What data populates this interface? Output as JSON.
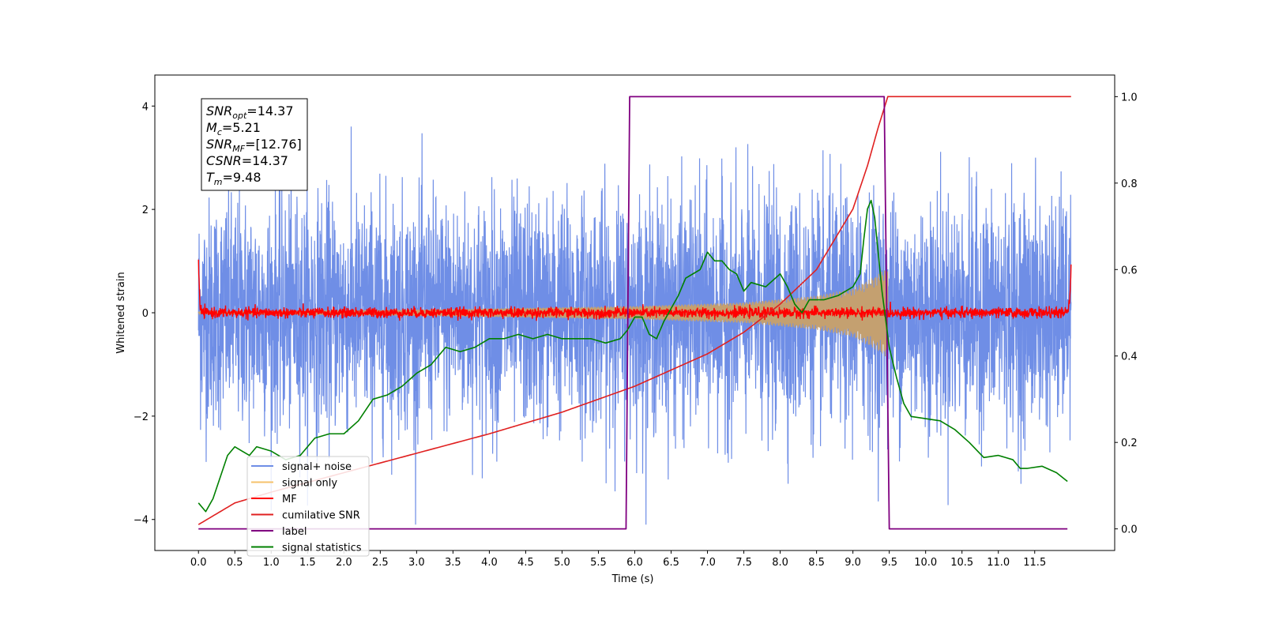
{
  "chart_data": {
    "type": "line",
    "xlabel": "Time (s)",
    "ylabel": "Whitened strain",
    "xlim": [
      -0.6,
      12.6
    ],
    "ylim": [
      -4.6,
      4.6
    ],
    "ylim_right": [
      -0.05,
      1.05
    ],
    "x_ticks": [
      0.0,
      0.5,
      1.0,
      1.5,
      2.0,
      2.5,
      3.0,
      3.5,
      4.0,
      4.5,
      5.0,
      5.5,
      6.0,
      6.5,
      7.0,
      7.5,
      8.0,
      8.5,
      9.0,
      9.5,
      10.0,
      10.5,
      11.0,
      11.5
    ],
    "x_tick_labels": [
      "0.0",
      "0.5",
      "1.0",
      "1.5",
      "2.0",
      "2.5",
      "3.0",
      "3.5",
      "4.0",
      "4.5",
      "5.0",
      "5.5",
      "6.0",
      "6.5",
      "7.0",
      "7.5",
      "8.0",
      "8.5",
      "9.0",
      "9.5",
      "10.0",
      "10.5",
      "11.0",
      "11.5"
    ],
    "y_ticks": [
      -4,
      -2,
      0,
      2,
      4
    ],
    "y_tick_labels": [
      "−4",
      "−2",
      "0",
      "2",
      "4"
    ],
    "y_ticks_right": [
      0.0,
      0.2,
      0.4,
      0.6,
      0.8,
      1.0
    ],
    "y_tick_labels_right": [
      "0.0",
      "0.2",
      "0.4",
      "0.6",
      "0.8",
      "1.0"
    ],
    "grid": false,
    "legend_position": "lower-left",
    "colors": {
      "signal_noise": "#6f8ee6",
      "signal_only": "#f5c26b",
      "mf": "#ff0000",
      "cumulative_snr": "#e02020",
      "label": "#800080",
      "signal_statistics": "#008000",
      "chirp_fill": "#c4a070"
    },
    "series": [
      {
        "name": "signal+ noise",
        "axis": "left",
        "style": "noise",
        "x_range": [
          0.0,
          12.0
        ],
        "amplitude_typical": 1.1,
        "amplitude_peak": 4.1
      },
      {
        "name": "signal only",
        "axis": "left",
        "style": "chirp",
        "x_range": [
          0.0,
          9.48
        ],
        "envelope": [
          [
            0.0,
            0.02
          ],
          [
            3.0,
            0.06
          ],
          [
            6.0,
            0.13
          ],
          [
            7.5,
            0.2
          ],
          [
            8.5,
            0.33
          ],
          [
            9.0,
            0.47
          ],
          [
            9.3,
            0.7
          ],
          [
            9.45,
            0.85
          ]
        ]
      },
      {
        "name": "MF",
        "axis": "left",
        "style": "mf",
        "x_range": [
          0.0,
          12.0
        ],
        "points": [
          [
            0.0,
            1.0
          ],
          [
            0.02,
            0.1
          ],
          [
            0.05,
            0.0
          ],
          [
            11.95,
            0.0
          ],
          [
            11.98,
            0.2
          ],
          [
            12.0,
            0.9
          ]
        ],
        "noise_amplitude": 0.1
      },
      {
        "name": "cumilative SNR",
        "axis": "right",
        "points": [
          [
            0.0,
            0.01
          ],
          [
            0.5,
            0.06
          ],
          [
            1.0,
            0.085
          ],
          [
            2.0,
            0.13
          ],
          [
            3.0,
            0.175
          ],
          [
            4.0,
            0.22
          ],
          [
            5.0,
            0.27
          ],
          [
            6.0,
            0.33
          ],
          [
            7.0,
            0.405
          ],
          [
            7.5,
            0.455
          ],
          [
            8.0,
            0.52
          ],
          [
            8.5,
            0.6
          ],
          [
            9.0,
            0.74
          ],
          [
            9.2,
            0.84
          ],
          [
            9.35,
            0.93
          ],
          [
            9.48,
            1.0
          ],
          [
            12.0,
            1.0
          ]
        ]
      },
      {
        "name": "label",
        "axis": "right",
        "points": [
          [
            0.0,
            0.0
          ],
          [
            5.88,
            0.0
          ],
          [
            5.93,
            1.0
          ],
          [
            9.43,
            1.0
          ],
          [
            9.5,
            0.0
          ],
          [
            11.95,
            0.0
          ]
        ]
      },
      {
        "name": "signal statistics",
        "axis": "right",
        "points": [
          [
            0.0,
            0.06
          ],
          [
            0.1,
            0.04
          ],
          [
            0.2,
            0.07
          ],
          [
            0.3,
            0.12
          ],
          [
            0.4,
            0.17
          ],
          [
            0.5,
            0.19
          ],
          [
            0.6,
            0.18
          ],
          [
            0.7,
            0.17
          ],
          [
            0.8,
            0.19
          ],
          [
            1.0,
            0.18
          ],
          [
            1.2,
            0.16
          ],
          [
            1.4,
            0.17
          ],
          [
            1.6,
            0.21
          ],
          [
            1.8,
            0.22
          ],
          [
            2.0,
            0.22
          ],
          [
            2.2,
            0.25
          ],
          [
            2.4,
            0.3
          ],
          [
            2.6,
            0.31
          ],
          [
            2.8,
            0.33
          ],
          [
            3.0,
            0.36
          ],
          [
            3.2,
            0.38
          ],
          [
            3.4,
            0.42
          ],
          [
            3.6,
            0.41
          ],
          [
            3.8,
            0.42
          ],
          [
            4.0,
            0.44
          ],
          [
            4.2,
            0.44
          ],
          [
            4.4,
            0.45
          ],
          [
            4.6,
            0.44
          ],
          [
            4.8,
            0.45
          ],
          [
            5.0,
            0.44
          ],
          [
            5.2,
            0.44
          ],
          [
            5.4,
            0.44
          ],
          [
            5.6,
            0.43
          ],
          [
            5.8,
            0.44
          ],
          [
            5.9,
            0.46
          ],
          [
            6.0,
            0.49
          ],
          [
            6.1,
            0.49
          ],
          [
            6.2,
            0.45
          ],
          [
            6.3,
            0.44
          ],
          [
            6.4,
            0.48
          ],
          [
            6.5,
            0.51
          ],
          [
            6.6,
            0.54
          ],
          [
            6.7,
            0.58
          ],
          [
            6.8,
            0.59
          ],
          [
            6.9,
            0.6
          ],
          [
            7.0,
            0.64
          ],
          [
            7.1,
            0.62
          ],
          [
            7.2,
            0.62
          ],
          [
            7.3,
            0.6
          ],
          [
            7.4,
            0.59
          ],
          [
            7.5,
            0.55
          ],
          [
            7.6,
            0.57
          ],
          [
            7.8,
            0.56
          ],
          [
            8.0,
            0.59
          ],
          [
            8.1,
            0.56
          ],
          [
            8.2,
            0.52
          ],
          [
            8.3,
            0.5
          ],
          [
            8.4,
            0.53
          ],
          [
            8.6,
            0.53
          ],
          [
            8.8,
            0.54
          ],
          [
            9.0,
            0.56
          ],
          [
            9.1,
            0.59
          ],
          [
            9.15,
            0.67
          ],
          [
            9.2,
            0.74
          ],
          [
            9.25,
            0.76
          ],
          [
            9.3,
            0.72
          ],
          [
            9.4,
            0.55
          ],
          [
            9.5,
            0.42
          ],
          [
            9.6,
            0.35
          ],
          [
            9.7,
            0.29
          ],
          [
            9.8,
            0.26
          ],
          [
            10.0,
            0.255
          ],
          [
            10.2,
            0.25
          ],
          [
            10.4,
            0.23
          ],
          [
            10.6,
            0.2
          ],
          [
            10.8,
            0.165
          ],
          [
            11.0,
            0.17
          ],
          [
            11.2,
            0.16
          ],
          [
            11.3,
            0.14
          ],
          [
            11.4,
            0.14
          ],
          [
            11.6,
            0.145
          ],
          [
            11.8,
            0.13
          ],
          [
            11.95,
            0.11
          ]
        ]
      }
    ],
    "annotation_box": {
      "position": "top-left",
      "lines": [
        {
          "base": "SNR",
          "sub": "opt",
          "value": "=14.37"
        },
        {
          "base": "M",
          "sub": "c",
          "value": "=5.21"
        },
        {
          "base": "SNR",
          "sub": "MF",
          "value": "=[12.76]"
        },
        {
          "base": "CSNR",
          "sub": "",
          "value": "=14.37"
        },
        {
          "base": "T",
          "sub": "m",
          "value": "=9.48"
        }
      ]
    }
  }
}
